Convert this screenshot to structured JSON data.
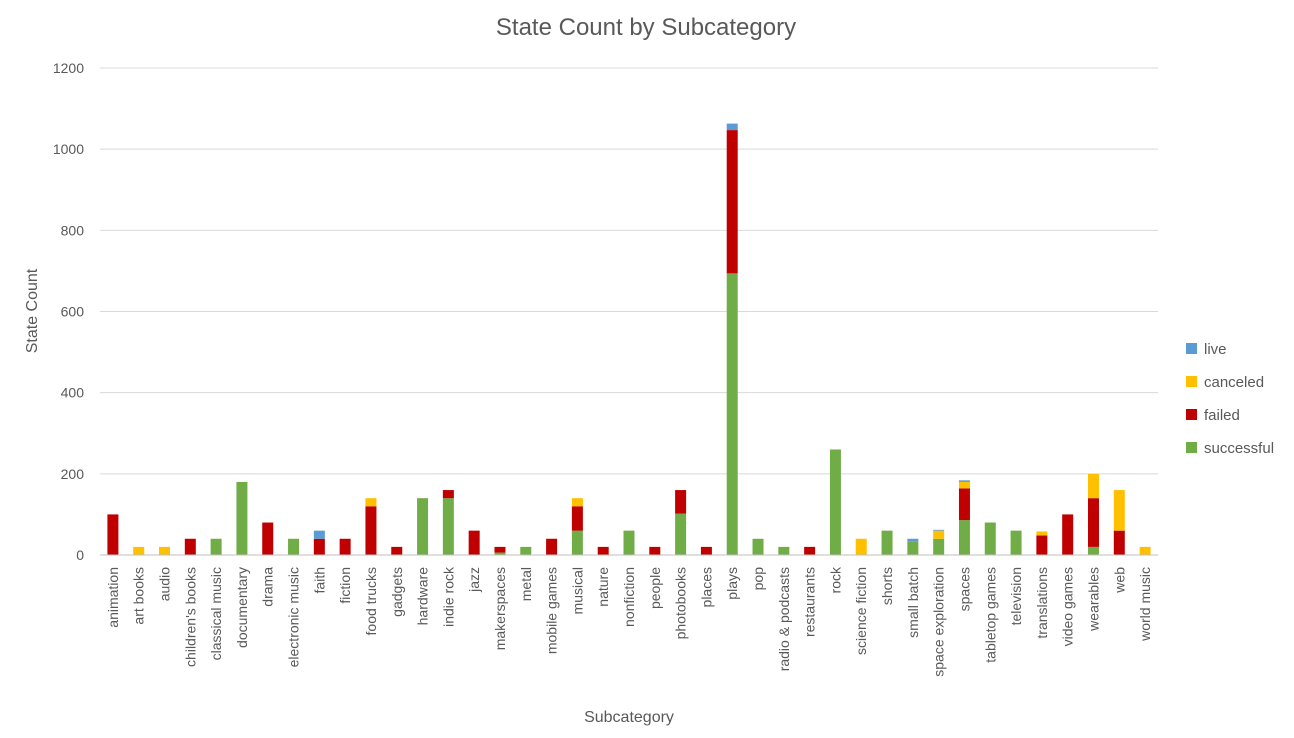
{
  "chart_data": {
    "type": "bar",
    "stacked": true,
    "title": "State Count by Subcategory",
    "xlabel": "Subcategory",
    "ylabel": "State Count",
    "ylim": [
      0,
      1200
    ],
    "yticks": [
      0,
      200,
      400,
      600,
      800,
      1000,
      1200
    ],
    "grid": true,
    "legend_position": "right",
    "categories": [
      "animation",
      "art books",
      "audio",
      "children's books",
      "classical music",
      "documentary",
      "drama",
      "electronic music",
      "faith",
      "fiction",
      "food trucks",
      "gadgets",
      "hardware",
      "indie rock",
      "jazz",
      "makerspaces",
      "metal",
      "mobile games",
      "musical",
      "nature",
      "nonfiction",
      "people",
      "photobooks",
      "places",
      "plays",
      "pop",
      "radio & podcasts",
      "restaurants",
      "rock",
      "science fiction",
      "shorts",
      "small batch",
      "space exploration",
      "spaces",
      "tabletop games",
      "television",
      "translations",
      "video games",
      "wearables",
      "web",
      "world music"
    ],
    "series": [
      {
        "name": "successful",
        "color": "#70ad47",
        "values": [
          0,
          0,
          0,
          0,
          40,
          180,
          0,
          40,
          0,
          0,
          0,
          0,
          140,
          140,
          0,
          6,
          20,
          0,
          60,
          0,
          60,
          0,
          102,
          0,
          694,
          40,
          20,
          0,
          260,
          0,
          60,
          34,
          40,
          86,
          80,
          60,
          0,
          0,
          20,
          0,
          0
        ]
      },
      {
        "name": "failed",
        "color": "#c00000",
        "values": [
          100,
          0,
          0,
          40,
          0,
          0,
          80,
          0,
          40,
          40,
          120,
          20,
          0,
          20,
          60,
          14,
          0,
          40,
          60,
          20,
          0,
          20,
          58,
          20,
          353,
          0,
          0,
          20,
          0,
          0,
          0,
          0,
          0,
          78,
          0,
          0,
          48,
          100,
          120,
          60,
          0
        ]
      },
      {
        "name": "canceled",
        "color": "#ffc000",
        "values": [
          0,
          20,
          20,
          0,
          0,
          0,
          0,
          0,
          0,
          0,
          20,
          0,
          0,
          0,
          0,
          0,
          0,
          0,
          20,
          0,
          0,
          0,
          0,
          0,
          0,
          0,
          0,
          0,
          0,
          40,
          0,
          0,
          20,
          16,
          0,
          0,
          10,
          0,
          60,
          100,
          20
        ]
      },
      {
        "name": "live",
        "color": "#5b9bd5",
        "values": [
          0,
          0,
          0,
          0,
          0,
          0,
          0,
          0,
          20,
          0,
          0,
          0,
          0,
          0,
          0,
          0,
          0,
          0,
          0,
          0,
          0,
          0,
          0,
          0,
          16,
          0,
          0,
          0,
          0,
          0,
          0,
          6,
          2,
          4,
          0,
          0,
          0,
          0,
          0,
          0,
          0
        ]
      }
    ],
    "legend_order": [
      "live",
      "canceled",
      "failed",
      "successful"
    ]
  }
}
